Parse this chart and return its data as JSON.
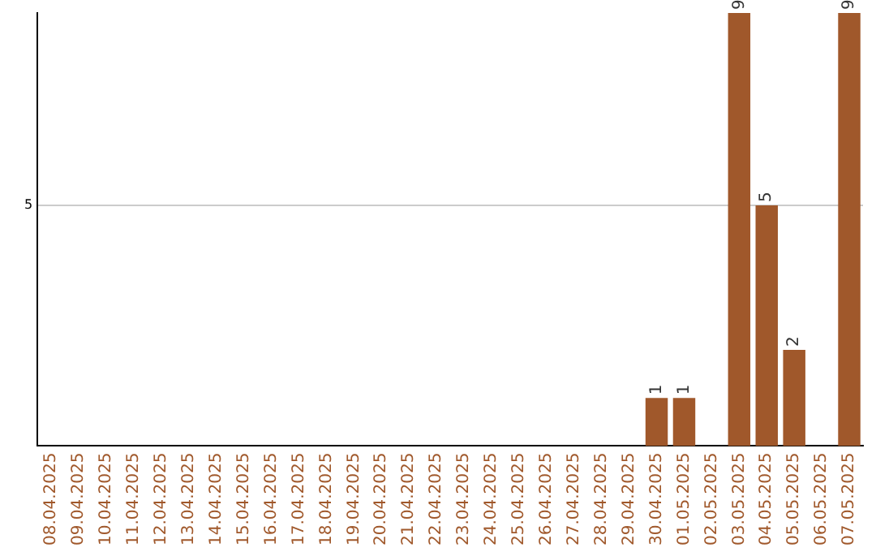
{
  "chart_data": {
    "type": "bar",
    "categories": [
      "08.04.2025",
      "09.04.2025",
      "10.04.2025",
      "11.04.2025",
      "12.04.2025",
      "13.04.2025",
      "14.04.2025",
      "15.04.2025",
      "16.04.2025",
      "17.04.2025",
      "18.04.2025",
      "19.04.2025",
      "20.04.2025",
      "21.04.2025",
      "22.04.2025",
      "23.04.2025",
      "24.04.2025",
      "25.04.2025",
      "26.04.2025",
      "27.04.2025",
      "28.04.2025",
      "29.04.2025",
      "30.04.2025",
      "01.05.2025",
      "02.05.2025",
      "03.05.2025",
      "04.05.2025",
      "05.05.2025",
      "06.05.2025",
      "07.05.2025"
    ],
    "values": [
      null,
      null,
      null,
      null,
      null,
      null,
      null,
      null,
      null,
      null,
      null,
      null,
      null,
      null,
      null,
      null,
      null,
      null,
      null,
      null,
      null,
      null,
      1,
      1,
      null,
      9,
      5,
      2,
      null,
      9
    ],
    "data_labels": true,
    "color": "#a0582b",
    "ylim": [
      0,
      9
    ],
    "yticks": [
      5
    ],
    "grid": "y",
    "legend": false
  }
}
